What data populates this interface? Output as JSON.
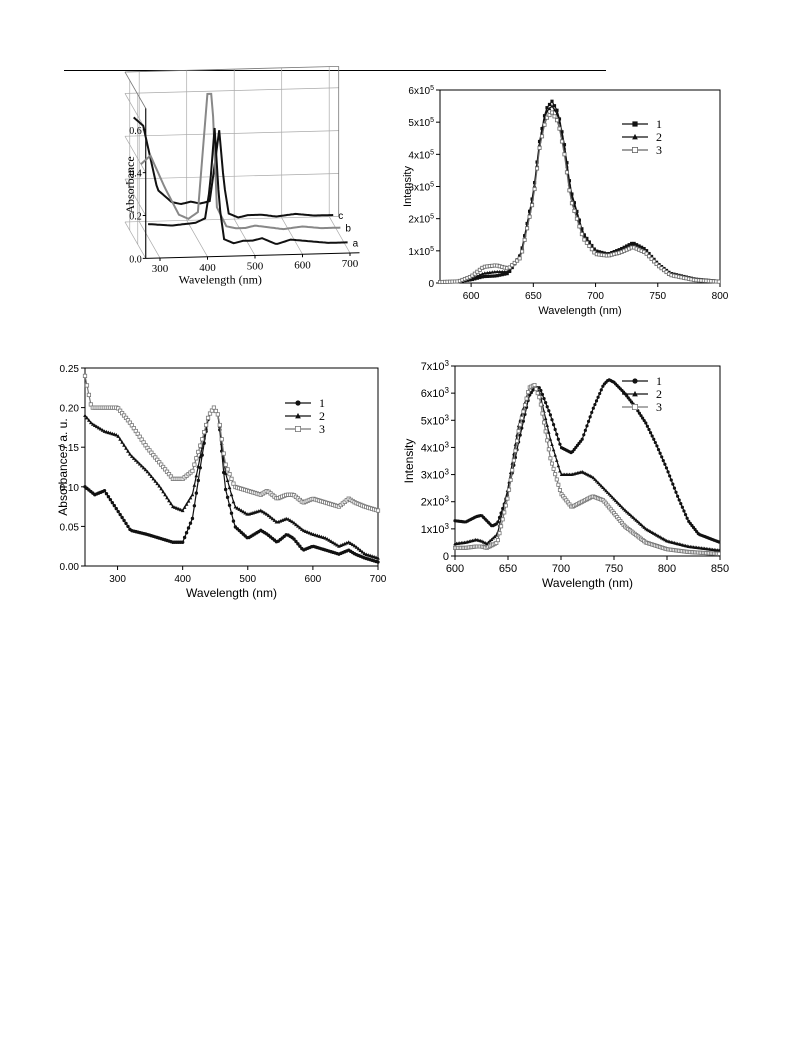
{
  "chart_data": [
    {
      "id": "a",
      "type": "line",
      "projection": "3d-waterfall",
      "xlabel": "Wavelength (nm)",
      "ylabel": "Absorbance",
      "x_ticks": [
        "300",
        "400",
        "500",
        "600",
        "700"
      ],
      "y_ticks": [
        "0.0",
        "0.2",
        "0.4",
        "0.6"
      ],
      "xlim": [
        270,
        720
      ],
      "ylim": [
        0,
        0.7
      ],
      "grid": true,
      "series": [
        {
          "name": "a",
          "color": "#111111",
          "x": [
            280,
            330,
            380,
            400,
            410,
            420,
            430,
            440,
            460,
            480,
            500,
            520,
            550,
            580,
            620,
            660,
            700
          ],
          "y": [
            0.14,
            0.13,
            0.14,
            0.16,
            0.3,
            0.58,
            0.22,
            0.06,
            0.04,
            0.05,
            0.05,
            0.06,
            0.03,
            0.05,
            0.04,
            0.03,
            0.03
          ]
        },
        {
          "name": "b",
          "color": "#888888",
          "x": [
            280,
            300,
            330,
            360,
            380,
            400,
            420,
            430,
            440,
            460,
            480,
            500,
            520,
            550,
            580,
            620,
            660,
            700
          ],
          "y": [
            0.36,
            0.4,
            0.25,
            0.12,
            0.1,
            0.13,
            0.68,
            0.68,
            0.15,
            0.06,
            0.05,
            0.05,
            0.06,
            0.05,
            0.04,
            0.05,
            0.04,
            0.04
          ]
        },
        {
          "name": "c",
          "color": "#111111",
          "x": [
            280,
            300,
            330,
            360,
            380,
            400,
            420,
            440,
            450,
            460,
            470,
            480,
            500,
            520,
            550,
            580,
            620,
            660,
            700
          ],
          "y": [
            0.52,
            0.48,
            0.18,
            0.12,
            0.11,
            0.12,
            0.11,
            0.12,
            0.28,
            0.45,
            0.2,
            0.06,
            0.04,
            0.05,
            0.05,
            0.04,
            0.05,
            0.04,
            0.04
          ]
        }
      ]
    },
    {
      "id": "b",
      "type": "line",
      "xlabel": "Wavelength (nm)",
      "ylabel": "Intensity",
      "xlim": [
        575,
        800
      ],
      "ylim": [
        0,
        600000
      ],
      "x_ticks": [
        600,
        650,
        700,
        750,
        800
      ],
      "y_ticks": [
        {
          "v": 0,
          "m": "0",
          "e": ""
        },
        {
          "v": 100000,
          "m": "1x10",
          "e": "5"
        },
        {
          "v": 200000,
          "m": "2x10",
          "e": "5"
        },
        {
          "v": 300000,
          "m": "3x10",
          "e": "5"
        },
        {
          "v": 400000,
          "m": "4x10",
          "e": "5"
        },
        {
          "v": 500000,
          "m": "5x10",
          "e": "5"
        },
        {
          "v": 600000,
          "m": "6x10",
          "e": "5"
        }
      ],
      "legend_position": "top-right",
      "series": [
        {
          "name": "1",
          "marker": "square-filled",
          "color": "#111111",
          "x": [
            575,
            590,
            600,
            610,
            620,
            630,
            640,
            650,
            655,
            660,
            665,
            670,
            675,
            680,
            690,
            700,
            710,
            720,
            730,
            740,
            750,
            760,
            780,
            800
          ],
          "y": [
            3000,
            5000,
            10000,
            20000,
            22000,
            30000,
            90000,
            280000,
            440000,
            540000,
            565000,
            530000,
            430000,
            290000,
            155000,
            100000,
            90000,
            105000,
            125000,
            105000,
            60000,
            30000,
            12000,
            5000
          ]
        },
        {
          "name": "2",
          "marker": "triangle-filled",
          "color": "#111111",
          "x": [
            575,
            590,
            600,
            610,
            620,
            630,
            640,
            650,
            655,
            660,
            665,
            670,
            675,
            680,
            690,
            700,
            710,
            720,
            730,
            740,
            750,
            760,
            780,
            800
          ],
          "y": [
            3000,
            5000,
            12000,
            30000,
            35000,
            35000,
            85000,
            270000,
            430000,
            530000,
            550000,
            520000,
            420000,
            280000,
            150000,
            95000,
            88000,
            100000,
            118000,
            100000,
            58000,
            28000,
            10000,
            4000
          ]
        },
        {
          "name": "3",
          "marker": "square-open",
          "color": "#666666",
          "x": [
            575,
            590,
            600,
            610,
            620,
            630,
            640,
            650,
            655,
            660,
            665,
            670,
            675,
            680,
            690,
            700,
            710,
            720,
            730,
            740,
            750,
            760,
            780,
            800
          ],
          "y": [
            3000,
            5000,
            20000,
            50000,
            55000,
            45000,
            80000,
            260000,
            420000,
            510000,
            530000,
            500000,
            400000,
            260000,
            140000,
            90000,
            85000,
            95000,
            112000,
            95000,
            55000,
            25000,
            9000,
            4000
          ]
        }
      ]
    },
    {
      "id": "c",
      "type": "line",
      "xlabel": "Wavelength (nm)",
      "ylabel": "Absorbance / a. u.",
      "xlim": [
        250,
        700
      ],
      "ylim": [
        0,
        0.25
      ],
      "x_ticks": [
        300,
        400,
        500,
        600,
        700
      ],
      "y_ticks": [
        "0.00",
        "0.05",
        "0.10",
        "0.15",
        "0.20",
        "0.25"
      ],
      "legend_position": "top-right",
      "series": [
        {
          "name": "1",
          "marker": "circle-filled",
          "color": "#111111",
          "x": [
            250,
            265,
            280,
            300,
            320,
            345,
            365,
            385,
            400,
            415,
            430,
            440,
            448,
            455,
            465,
            480,
            500,
            520,
            530,
            545,
            560,
            570,
            585,
            600,
            620,
            640,
            655,
            665,
            680,
            700
          ],
          "y": [
            0.1,
            0.09,
            0.095,
            0.07,
            0.045,
            0.04,
            0.035,
            0.03,
            0.03,
            0.06,
            0.14,
            0.19,
            0.2,
            0.19,
            0.1,
            0.05,
            0.035,
            0.045,
            0.04,
            0.03,
            0.04,
            0.035,
            0.02,
            0.025,
            0.02,
            0.015,
            0.02,
            0.015,
            0.01,
            0.005
          ]
        },
        {
          "name": "2",
          "marker": "triangle-filled",
          "color": "#111111",
          "x": [
            250,
            260,
            280,
            300,
            320,
            345,
            365,
            385,
            400,
            415,
            430,
            440,
            448,
            455,
            465,
            480,
            500,
            520,
            530,
            545,
            560,
            570,
            585,
            600,
            620,
            640,
            655,
            665,
            680,
            700
          ],
          "y": [
            0.19,
            0.18,
            0.17,
            0.165,
            0.14,
            0.12,
            0.1,
            0.075,
            0.07,
            0.09,
            0.15,
            0.19,
            0.2,
            0.19,
            0.12,
            0.075,
            0.065,
            0.07,
            0.065,
            0.055,
            0.06,
            0.055,
            0.045,
            0.04,
            0.035,
            0.025,
            0.03,
            0.025,
            0.015,
            0.01
          ]
        },
        {
          "name": "3",
          "marker": "square-open",
          "color": "#777777",
          "x": [
            250,
            260,
            280,
            300,
            320,
            345,
            365,
            385,
            400,
            415,
            430,
            440,
            448,
            455,
            465,
            480,
            500,
            520,
            530,
            545,
            560,
            570,
            585,
            600,
            620,
            640,
            655,
            665,
            680,
            700
          ],
          "y": [
            0.24,
            0.2,
            0.2,
            0.2,
            0.18,
            0.15,
            0.13,
            0.11,
            0.11,
            0.12,
            0.16,
            0.19,
            0.2,
            0.19,
            0.13,
            0.1,
            0.095,
            0.09,
            0.095,
            0.085,
            0.09,
            0.09,
            0.08,
            0.085,
            0.08,
            0.075,
            0.085,
            0.08,
            0.075,
            0.07
          ]
        }
      ]
    },
    {
      "id": "d",
      "type": "line",
      "xlabel": "Wavelength (nm)",
      "ylabel": "Intensity",
      "xlim": [
        600,
        850
      ],
      "ylim": [
        0,
        7000
      ],
      "x_ticks": [
        600,
        650,
        700,
        750,
        800,
        850
      ],
      "y_ticks": [
        {
          "v": 0,
          "m": "0",
          "e": ""
        },
        {
          "v": 1000,
          "m": "1x10",
          "e": "3"
        },
        {
          "v": 2000,
          "m": "2x10",
          "e": "3"
        },
        {
          "v": 3000,
          "m": "3x10",
          "e": "3"
        },
        {
          "v": 4000,
          "m": "4x10",
          "e": "3"
        },
        {
          "v": 5000,
          "m": "5x10",
          "e": "3"
        },
        {
          "v": 6000,
          "m": "6x10",
          "e": "3"
        },
        {
          "v": 7000,
          "m": "7x10",
          "e": "3"
        }
      ],
      "legend_position": "top-right",
      "series": [
        {
          "name": "1",
          "marker": "circle-filled",
          "color": "#111111",
          "x": [
            600,
            610,
            620,
            625,
            630,
            635,
            640,
            650,
            660,
            670,
            675,
            680,
            690,
            700,
            710,
            720,
            730,
            740,
            745,
            750,
            760,
            770,
            780,
            790,
            800,
            810,
            820,
            830,
            840,
            850
          ],
          "y": [
            1300,
            1250,
            1450,
            1500,
            1300,
            1100,
            1200,
            2300,
            4200,
            5900,
            6200,
            6200,
            5200,
            4000,
            3800,
            4300,
            5400,
            6300,
            6500,
            6400,
            6000,
            5500,
            4900,
            4100,
            3200,
            2200,
            1300,
            800,
            650,
            500
          ]
        },
        {
          "name": "2",
          "marker": "triangle-filled",
          "color": "#111111",
          "x": [
            600,
            610,
            620,
            625,
            630,
            640,
            650,
            660,
            670,
            675,
            680,
            690,
            700,
            710,
            720,
            730,
            740,
            760,
            780,
            800,
            820,
            840,
            850
          ],
          "y": [
            450,
            500,
            600,
            550,
            450,
            800,
            2500,
            4800,
            6200,
            6300,
            6000,
            4300,
            3000,
            3000,
            3100,
            2900,
            2500,
            1700,
            1000,
            550,
            350,
            250,
            200
          ]
        },
        {
          "name": "3",
          "marker": "square-open",
          "color": "#777777",
          "x": [
            600,
            610,
            620,
            625,
            630,
            640,
            650,
            660,
            670,
            675,
            680,
            690,
            700,
            710,
            720,
            730,
            740,
            760,
            780,
            800,
            820,
            840,
            850
          ],
          "y": [
            300,
            300,
            350,
            350,
            300,
            500,
            2200,
            4600,
            6200,
            6300,
            5800,
            3600,
            2300,
            1800,
            2000,
            2200,
            2050,
            1100,
            500,
            250,
            150,
            100,
            80
          ]
        }
      ]
    }
  ]
}
